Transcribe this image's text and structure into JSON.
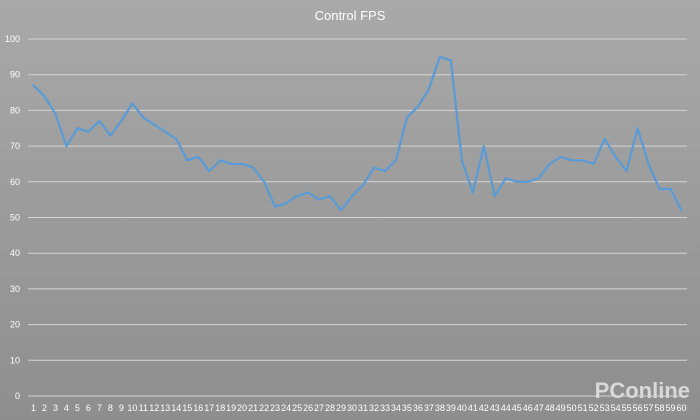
{
  "chart_data": {
    "type": "line",
    "title": "Control FPS",
    "xlabel": "",
    "ylabel": "",
    "ylim": [
      0,
      100
    ],
    "yticks": [
      0,
      10,
      20,
      30,
      40,
      50,
      60,
      70,
      80,
      90,
      100
    ],
    "grid": true,
    "legend": "none",
    "x": [
      1,
      2,
      3,
      4,
      5,
      6,
      7,
      8,
      9,
      10,
      11,
      12,
      13,
      14,
      15,
      16,
      17,
      18,
      19,
      20,
      21,
      22,
      23,
      24,
      25,
      26,
      27,
      28,
      29,
      30,
      31,
      32,
      33,
      34,
      35,
      36,
      37,
      38,
      39,
      40,
      41,
      42,
      43,
      44,
      45,
      46,
      47,
      48,
      49,
      50,
      51,
      52,
      53,
      54,
      55,
      56,
      57,
      58,
      59,
      60
    ],
    "series": [
      {
        "values": [
          87,
          84,
          79,
          70,
          75,
          74,
          77,
          73,
          77,
          82,
          78,
          76,
          74,
          72,
          66,
          67,
          63,
          66,
          65,
          65,
          64,
          60,
          53,
          54,
          56,
          57,
          55,
          56,
          52,
          56,
          59,
          64,
          63,
          66,
          78,
          81,
          86,
          95,
          94,
          66,
          57,
          70,
          56,
          61,
          60,
          60,
          61,
          65,
          67,
          66,
          66,
          65,
          72,
          67,
          63,
          75,
          65,
          58,
          58,
          52
        ],
        "color": "#5b9bd5"
      }
    ]
  },
  "watermark": "PConline"
}
